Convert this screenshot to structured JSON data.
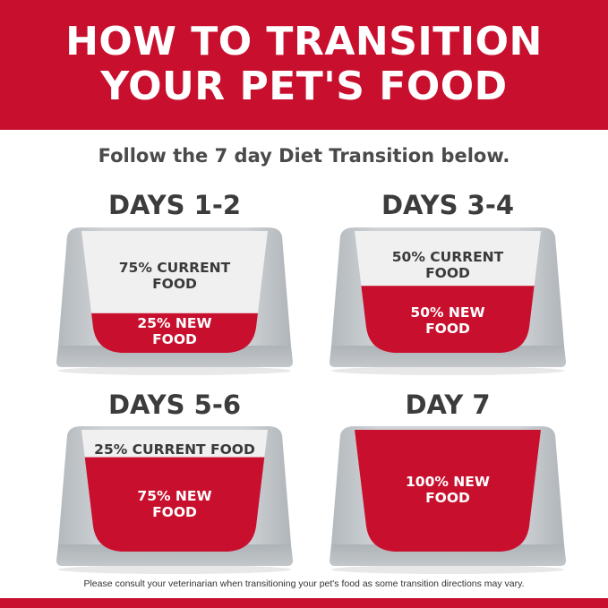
{
  "header": {
    "line1": "HOW TO TRANSITION",
    "line2": "YOUR PET'S FOOD"
  },
  "subtitle": "Follow the 7 day Diet Transition below.",
  "colors": {
    "brand_red": "#c8102e",
    "bowl_gray": "#c9cdd0",
    "inner_white": "#f0f0f0"
  },
  "stages": [
    {
      "title": "DAYS 1-2",
      "current_label": "75% CURRENT FOOD",
      "new_label_1": "25% NEW",
      "new_label_2": "FOOD",
      "cur_line1": "75% CURRENT",
      "cur_line2": "FOOD",
      "new_fraction": 0.25
    },
    {
      "title": "DAYS 3-4",
      "cur_line1": "50% CURRENT",
      "cur_line2": "FOOD",
      "new_label_1": "50% NEW",
      "new_label_2": "FOOD",
      "new_fraction": 0.5
    },
    {
      "title": "DAYS 5-6",
      "cur_line1": "25% CURRENT FOOD",
      "cur_line2": "",
      "new_label_1": "75% NEW",
      "new_label_2": "FOOD",
      "new_fraction": 0.75
    },
    {
      "title": "DAY 7",
      "cur_line1": "",
      "cur_line2": "",
      "new_label_1": "100% NEW",
      "new_label_2": "FOOD",
      "new_fraction": 1.0
    }
  ],
  "note": "Please consult your veterinarian when transitioning your pet's food as some transition directions may vary."
}
